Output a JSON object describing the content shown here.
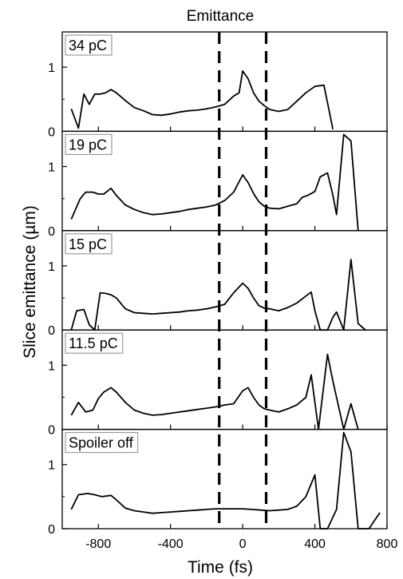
{
  "chart_data": {
    "type": "line",
    "title": "Emittance",
    "xlabel": "Time (fs)",
    "ylabel": "Slice emittance (µm)",
    "xlim": [
      -1000,
      800
    ],
    "xticks": [
      -800,
      -400,
      0,
      400,
      800
    ],
    "ylim": [
      0,
      1.5
    ],
    "yticks": [
      0,
      1
    ],
    "grid": false,
    "colors": {
      "line": "#000000",
      "dashed_line": "#000000",
      "frame": "#000000"
    },
    "vlines": [
      -130,
      130
    ],
    "panels": [
      {
        "label": "34 pC",
        "x": [
          -950,
          -910,
          -880,
          -850,
          -820,
          -790,
          -760,
          -730,
          -700,
          -650,
          -600,
          -550,
          -500,
          -450,
          -400,
          -350,
          -300,
          -250,
          -200,
          -150,
          -100,
          -50,
          -20,
          0,
          30,
          60,
          90,
          120,
          150,
          200,
          250,
          300,
          350,
          400,
          450,
          500
        ],
        "y": [
          0.35,
          0.05,
          0.58,
          0.42,
          0.58,
          0.58,
          0.6,
          0.65,
          0.6,
          0.48,
          0.37,
          0.32,
          0.26,
          0.25,
          0.27,
          0.3,
          0.32,
          0.33,
          0.35,
          0.38,
          0.42,
          0.55,
          0.6,
          0.94,
          0.82,
          0.6,
          0.47,
          0.4,
          0.34,
          0.31,
          0.34,
          0.47,
          0.6,
          0.7,
          0.72,
          0.03
        ]
      },
      {
        "label": "19 pC",
        "x": [
          -950,
          -900,
          -870,
          -830,
          -800,
          -770,
          -730,
          -700,
          -650,
          -600,
          -550,
          -500,
          -450,
          -400,
          -350,
          -300,
          -250,
          -200,
          -150,
          -100,
          -50,
          0,
          30,
          60,
          90,
          120,
          150,
          200,
          250,
          300,
          330,
          360,
          400,
          430,
          470,
          500,
          520,
          560,
          600,
          640
        ],
        "y": [
          0.18,
          0.5,
          0.6,
          0.6,
          0.57,
          0.57,
          0.66,
          0.55,
          0.4,
          0.33,
          0.28,
          0.25,
          0.26,
          0.28,
          0.3,
          0.33,
          0.35,
          0.37,
          0.4,
          0.47,
          0.6,
          0.87,
          0.75,
          0.58,
          0.45,
          0.38,
          0.35,
          0.34,
          0.38,
          0.42,
          0.52,
          0.55,
          0.61,
          0.84,
          0.9,
          0.55,
          0.25,
          1.5,
          1.4,
          0.0
        ]
      },
      {
        "label": "15 pC",
        "x": [
          -950,
          -920,
          -880,
          -850,
          -820,
          -790,
          -760,
          -730,
          -700,
          -650,
          -600,
          -550,
          -500,
          -450,
          -400,
          -350,
          -300,
          -250,
          -200,
          -150,
          -100,
          -50,
          0,
          30,
          60,
          90,
          120,
          150,
          200,
          250,
          300,
          350,
          380,
          400,
          430,
          470,
          500,
          520,
          560,
          600,
          640,
          680
        ],
        "y": [
          0.0,
          0.3,
          0.32,
          0.08,
          0.0,
          0.58,
          0.57,
          0.55,
          0.5,
          0.33,
          0.27,
          0.26,
          0.25,
          0.26,
          0.27,
          0.28,
          0.3,
          0.31,
          0.33,
          0.36,
          0.4,
          0.58,
          0.73,
          0.65,
          0.5,
          0.38,
          0.34,
          0.33,
          0.3,
          0.35,
          0.42,
          0.53,
          0.59,
          0.3,
          0.0,
          0.0,
          0.2,
          0.28,
          0.0,
          1.1,
          0.1,
          0.0
        ]
      },
      {
        "label": "11.5 pC",
        "x": [
          -950,
          -910,
          -870,
          -830,
          -800,
          -770,
          -730,
          -700,
          -650,
          -600,
          -550,
          -500,
          -450,
          -400,
          -350,
          -300,
          -250,
          -200,
          -150,
          -100,
          -50,
          0,
          30,
          60,
          90,
          120,
          150,
          200,
          250,
          300,
          350,
          380,
          420,
          470,
          500,
          560,
          600,
          640
        ],
        "y": [
          0.22,
          0.42,
          0.27,
          0.3,
          0.48,
          0.58,
          0.65,
          0.58,
          0.42,
          0.3,
          0.25,
          0.22,
          0.23,
          0.25,
          0.27,
          0.29,
          0.31,
          0.33,
          0.35,
          0.38,
          0.4,
          0.6,
          0.65,
          0.5,
          0.38,
          0.32,
          0.3,
          0.27,
          0.32,
          0.38,
          0.5,
          0.85,
          0.0,
          1.17,
          0.75,
          0.0,
          0.4,
          0.0
        ]
      },
      {
        "label": "Spoiler off",
        "x": [
          -950,
          -910,
          -860,
          -820,
          -780,
          -730,
          -700,
          -650,
          -600,
          -550,
          -500,
          -450,
          -400,
          -350,
          -300,
          -250,
          -200,
          -150,
          -100,
          -50,
          0,
          50,
          100,
          150,
          200,
          250,
          300,
          350,
          400,
          430,
          470,
          520,
          560,
          600,
          640,
          700,
          760
        ],
        "y": [
          0.3,
          0.53,
          0.55,
          0.53,
          0.5,
          0.52,
          0.45,
          0.32,
          0.28,
          0.26,
          0.24,
          0.25,
          0.26,
          0.27,
          0.28,
          0.29,
          0.3,
          0.31,
          0.31,
          0.31,
          0.31,
          0.3,
          0.29,
          0.28,
          0.29,
          0.3,
          0.35,
          0.5,
          0.84,
          0.0,
          0.0,
          0.3,
          1.63,
          1.2,
          0.0,
          0.0,
          0.25
        ]
      }
    ]
  }
}
